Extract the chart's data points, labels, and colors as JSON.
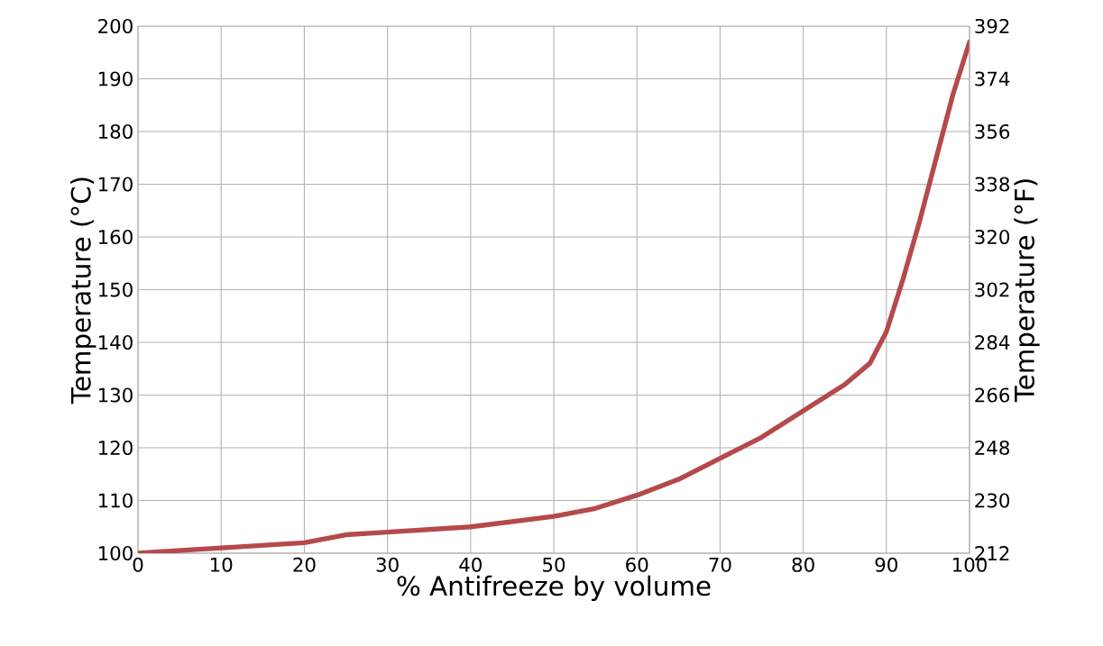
{
  "chart_data": {
    "type": "line",
    "xlabel": "% Antifreeze by volume",
    "ylabel": "Temperature (°C)",
    "y2label": "Temperature (°F)",
    "x": [
      0,
      10,
      20,
      25,
      30,
      40,
      50,
      55,
      60,
      65,
      70,
      75,
      80,
      85,
      88,
      90,
      92,
      94,
      96,
      98,
      100
    ],
    "series": [
      {
        "color": "#b5494b",
        "values": [
          100,
          101,
          102,
          103.5,
          104,
          105,
          107,
          108.5,
          111,
          114,
          118,
          122,
          127,
          132,
          136,
          142,
          152,
          163,
          175,
          187,
          197
        ]
      }
    ],
    "xlim": [
      0,
      100
    ],
    "xticks": [
      0,
      10,
      20,
      30,
      40,
      50,
      60,
      70,
      80,
      90,
      100
    ],
    "ylim": [
      100,
      200
    ],
    "yticks": [
      100,
      110,
      120,
      130,
      140,
      150,
      160,
      170,
      180,
      190,
      200
    ],
    "y2lim": [
      212,
      392
    ],
    "y2ticks": [
      212,
      230,
      248,
      266,
      284,
      302,
      320,
      338,
      356,
      374,
      392
    ],
    "grid": true,
    "marker": "none",
    "line_style": "solid"
  }
}
